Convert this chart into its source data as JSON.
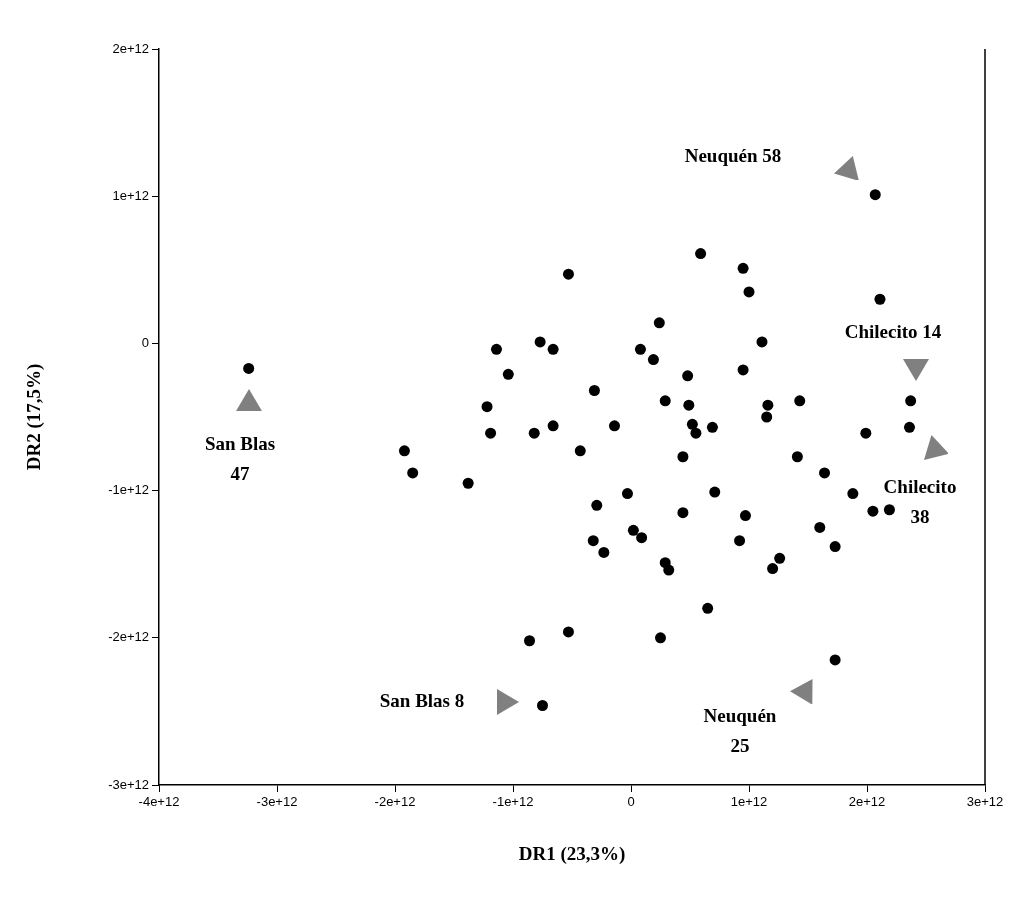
{
  "chart_data": {
    "type": "scatter",
    "xlabel": "DR1 (23,3%)",
    "ylabel": "DR2 (17,5%)",
    "xlim": [
      -4000000000000.0,
      3000000000000.0
    ],
    "ylim": [
      -3000000000000.0,
      2000000000000.0
    ],
    "xticks": [
      {
        "value": -4000000000000.0,
        "label": "-4e+12"
      },
      {
        "value": -3000000000000.0,
        "label": "-3e+12"
      },
      {
        "value": -2000000000000.0,
        "label": "-2e+12"
      },
      {
        "value": -1000000000000.0,
        "label": "-1e+12"
      },
      0,
      {
        "value": 1000000000000.0,
        "label": "1e+12"
      },
      {
        "value": 2000000000000.0,
        "label": "2e+12"
      },
      {
        "value": 3000000000000.0,
        "label": "3e+12"
      }
    ],
    "yticks": [
      {
        "value": -3000000000000.0,
        "label": "-3e+12"
      },
      {
        "value": -2000000000000.0,
        "label": "-2e+12"
      },
      {
        "value": -1000000000000.0,
        "label": "-1e+12"
      },
      0,
      {
        "value": 1000000000000.0,
        "label": "1e+12"
      },
      {
        "value": 2000000000000.0,
        "label": "2e+12"
      }
    ],
    "grid": false,
    "legend": false,
    "marker": "circle",
    "series": [
      {
        "color": "#000000",
        "x": [
          -3240000000000.0,
          -1140000000000.0,
          -1040000000000.0,
          -770000000000.0,
          -660000000000.0,
          -1220000000000.0,
          -1190000000000.0,
          -820000000000.0,
          -660000000000.0,
          -1920000000000.0,
          -1850000000000.0,
          -1380000000000.0,
          -530000000000.0,
          2070000000000.0,
          590000000000.0,
          950000000000.0,
          1000000000000.0,
          2110000000000.0,
          240000000000.0,
          80000000000.0,
          190000000000.0,
          1110000000000.0,
          950000000000.0,
          480000000000.0,
          -310000000000.0,
          290000000000.0,
          490000000000.0,
          1160000000000.0,
          1150000000000.0,
          1430000000000.0,
          2370000000000.0,
          2360000000000.0,
          1990000000000.0,
          -140000000000.0,
          520000000000.0,
          550000000000.0,
          690000000000.0,
          -430000000000.0,
          440000000000.0,
          1410000000000.0,
          1640000000000.0,
          1880000000000.0,
          2050000000000.0,
          2190000000000.0,
          -30000000000.0,
          -290000000000.0,
          710000000000.0,
          440000000000.0,
          970000000000.0,
          1600000000000.0,
          20000000000.0,
          90000000000.0,
          -320000000000.0,
          920000000000.0,
          1730000000000.0,
          -230000000000.0,
          290000000000.0,
          320000000000.0,
          1260000000000.0,
          1200000000000.0,
          650000000000.0,
          -530000000000.0,
          250000000000.0,
          1730000000000.0,
          -750000000000.0,
          -860000000000.0
        ],
        "values": [
          -170000000000.0,
          -40000000000.0,
          -210000000000.0,
          10000000000.0,
          -40000000000.0,
          -430000000000.0,
          -610000000000.0,
          -610000000000.0,
          -560000000000.0,
          -730000000000.0,
          -880000000000.0,
          -950000000000.0,
          470000000000.0,
          1010000000000.0,
          610000000000.0,
          510000000000.0,
          350000000000.0,
          300000000000.0,
          140000000000.0,
          -40000000000.0,
          -110000000000.0,
          10000000000.0,
          -180000000000.0,
          -220000000000.0,
          -320000000000.0,
          -390000000000.0,
          -420000000000.0,
          -420000000000.0,
          -500000000000.0,
          -390000000000.0,
          -390000000000.0,
          -570000000000.0,
          -610000000000.0,
          -560000000000.0,
          -550000000000.0,
          -610000000000.0,
          -570000000000.0,
          -730000000000.0,
          -770000000000.0,
          -770000000000.0,
          -880000000000.0,
          -1020000000000.0,
          -1140000000000.0,
          -1130000000000.0,
          -1020000000000.0,
          -1100000000000.0,
          -1010000000000.0,
          -1150000000000.0,
          -1170000000000.0,
          -1250000000000.0,
          -1270000000000.0,
          -1320000000000.0,
          -1340000000000.0,
          -1340000000000.0,
          -1380000000000.0,
          -1420000000000.0,
          -1490000000000.0,
          -1540000000000.0,
          -1460000000000.0,
          -1530000000000.0,
          -1800000000000.0,
          -1960000000000.0,
          -2000000000000.0,
          -2150000000000.0,
          -2460000000000.0,
          -2020000000000.0
        ]
      }
    ],
    "annotations": [
      "Neuquén 58",
      "Chilecito 14",
      "Chilecito\n38",
      "Neuquén\n25",
      "San Blas 8",
      "San Blas\n47"
    ]
  }
}
